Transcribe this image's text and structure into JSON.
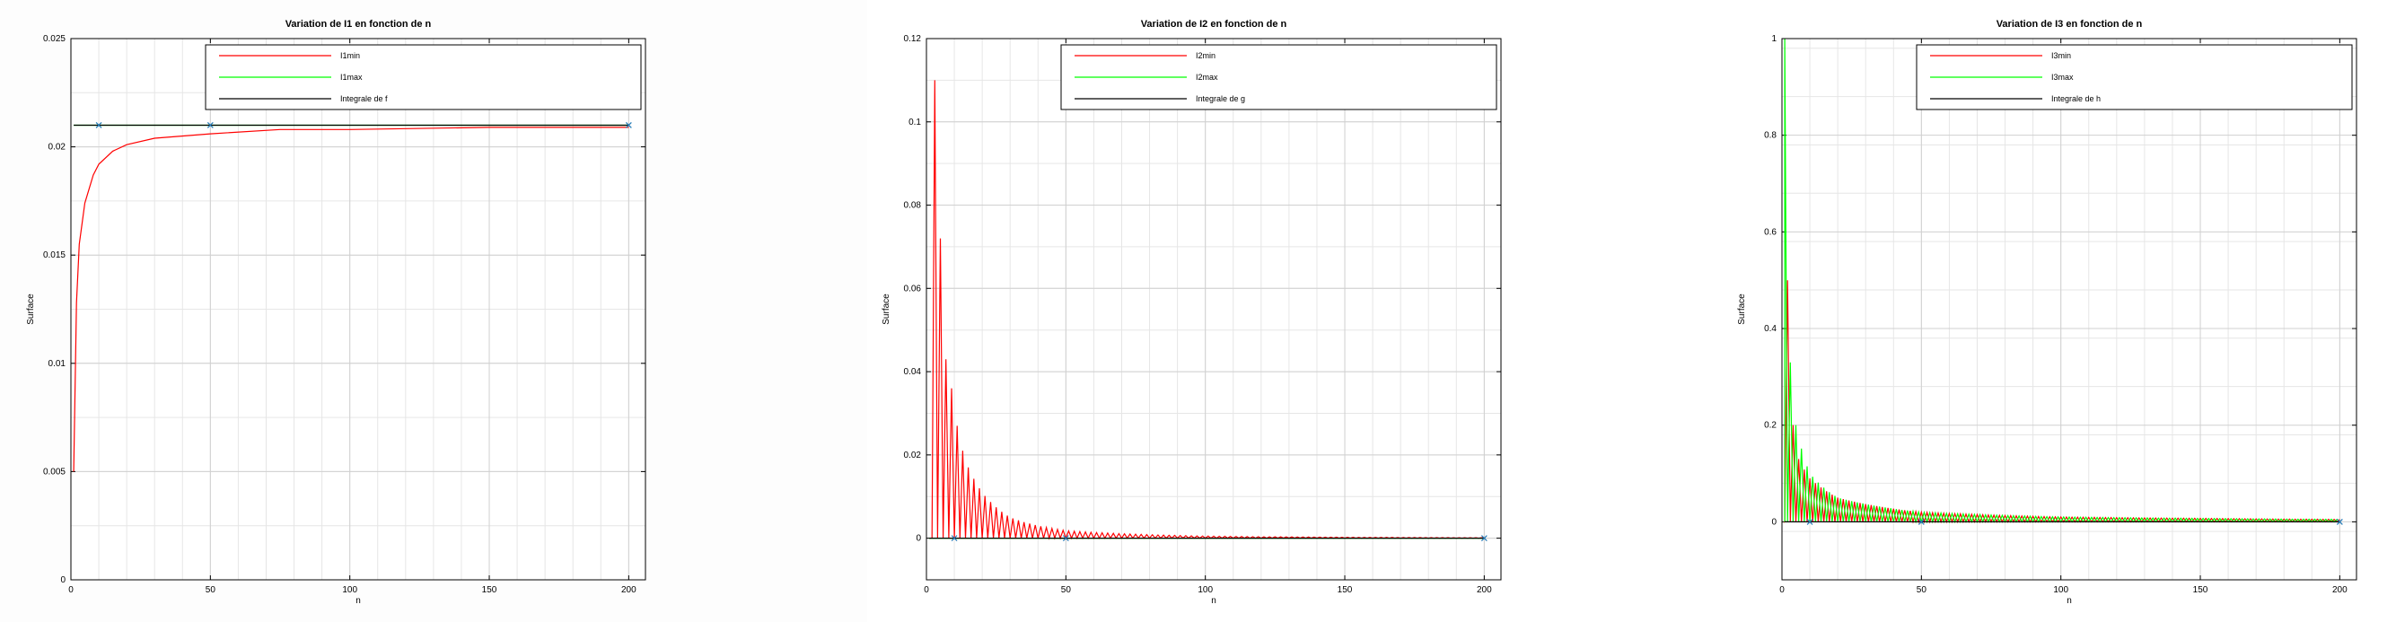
{
  "chart_data": [
    {
      "type": "line",
      "title": "Variation de I1 en fonction de n",
      "xlabel": "n",
      "ylabel": "Surface",
      "xlim": [
        0,
        206
      ],
      "ylim": [
        0,
        0.025
      ],
      "xticks": [
        0,
        50,
        100,
        150,
        200
      ],
      "yticks": [
        0,
        0.005,
        0.01,
        0.015,
        0.02,
        0.025
      ],
      "ytick_labels": [
        "0",
        "0.005",
        "0.01",
        "0.015",
        "0.02",
        "0.025"
      ],
      "grid": true,
      "legend_position": "top-right",
      "legend": [
        "I1min",
        "I1max",
        "Integrale de f"
      ],
      "series": [
        {
          "name": "I1min",
          "color": "#ff0000",
          "x": [
            1,
            2,
            3,
            5,
            8,
            10,
            15,
            20,
            30,
            50,
            75,
            100,
            150,
            200
          ],
          "y": [
            0.005,
            0.0128,
            0.0155,
            0.0174,
            0.0187,
            0.0192,
            0.0198,
            0.0201,
            0.0204,
            0.0206,
            0.0208,
            0.0208,
            0.0209,
            0.0209
          ]
        },
        {
          "name": "I1max",
          "color": "#00ff00",
          "x": [
            1,
            10,
            50,
            100,
            150,
            200
          ],
          "y": [
            0.021,
            0.021,
            0.021,
            0.021,
            0.021,
            0.021
          ]
        },
        {
          "name": "Integrale de f",
          "color": "#000000",
          "x": [
            1,
            10,
            50,
            100,
            150,
            200
          ],
          "y": [
            0.021,
            0.021,
            0.021,
            0.021,
            0.021,
            0.021
          ]
        }
      ],
      "markers": {
        "color": "#1f77b4",
        "x": [
          10,
          50,
          200
        ],
        "y": [
          0.021,
          0.021,
          0.021
        ]
      }
    },
    {
      "type": "line",
      "title": "Variation de I2 en fonction de n",
      "xlabel": "n",
      "ylabel": "Surface",
      "xlim": [
        0,
        206
      ],
      "ylim": [
        -0.01,
        0.12
      ],
      "xticks": [
        0,
        50,
        100,
        150,
        200
      ],
      "yticks": [
        0,
        0.02,
        0.04,
        0.06,
        0.08,
        0.1,
        0.12
      ],
      "ytick_labels": [
        "0",
        "0.02",
        "0.04",
        "0.06",
        "0.08",
        "0.1",
        "0.12"
      ],
      "grid": true,
      "legend_position": "top-right",
      "legend": [
        "I2min",
        "I2max",
        "Integrale de g"
      ],
      "series": [
        {
          "name": "I2min",
          "color": "#ff0000",
          "model": "oscillating_decay",
          "x": [
            3,
            5,
            7,
            9,
            11,
            13,
            15,
            20,
            30,
            50,
            100,
            200
          ],
          "peak_y": [
            0.11,
            0.072,
            0.043,
            0.036,
            0.027,
            0.021,
            0.017,
            0.011,
            0.005,
            0.0018,
            0.0005,
            0.0001
          ]
        },
        {
          "name": "I2max",
          "color": "#00ff00",
          "x": [
            1,
            200
          ],
          "y": [
            0,
            0
          ]
        },
        {
          "name": "Integrale de g",
          "color": "#000000",
          "x": [
            1,
            200
          ],
          "y": [
            0,
            0
          ]
        }
      ],
      "markers": {
        "color": "#1f77b4",
        "x": [
          10,
          50,
          200
        ],
        "y": [
          0,
          0,
          0
        ]
      }
    },
    {
      "type": "line",
      "title": "Variation de I3 en fonction de n",
      "xlabel": "n",
      "ylabel": "Surface",
      "xlim": [
        0,
        206
      ],
      "ylim": [
        -0.12,
        1
      ],
      "xticks": [
        0,
        50,
        100,
        150,
        200
      ],
      "yticks": [
        0,
        0.2,
        0.4,
        0.6,
        0.8,
        1
      ],
      "ytick_labels": [
        "0",
        "0.2",
        "0.4",
        "0.6",
        "0.8",
        "1"
      ],
      "grid": true,
      "legend_position": "top-right",
      "legend": [
        "I3min",
        "I3max",
        "Integrale de h"
      ],
      "series": [
        {
          "name": "I3min",
          "color": "#ff0000",
          "model": "oscillating_decay",
          "x": [
            2,
            4,
            6,
            10,
            20,
            50,
            100,
            200
          ],
          "peak_y": [
            0.5,
            0.2,
            0.13,
            0.09,
            0.05,
            0.02,
            0.01,
            0.005
          ]
        },
        {
          "name": "I3max",
          "color": "#00ff00",
          "model": "oscillating_decay",
          "x": [
            1,
            3,
            5,
            10,
            20,
            50,
            100,
            200
          ],
          "peak_y": [
            1.0,
            0.33,
            0.2,
            0.1,
            0.05,
            0.02,
            0.01,
            0.005
          ]
        },
        {
          "name": "Integrale de h",
          "color": "#000000",
          "x": [
            1,
            200
          ],
          "y": [
            0,
            0
          ]
        }
      ],
      "markers": {
        "color": "#1f77b4",
        "x": [
          10,
          50,
          200
        ],
        "y": [
          0,
          0,
          0
        ]
      }
    }
  ]
}
